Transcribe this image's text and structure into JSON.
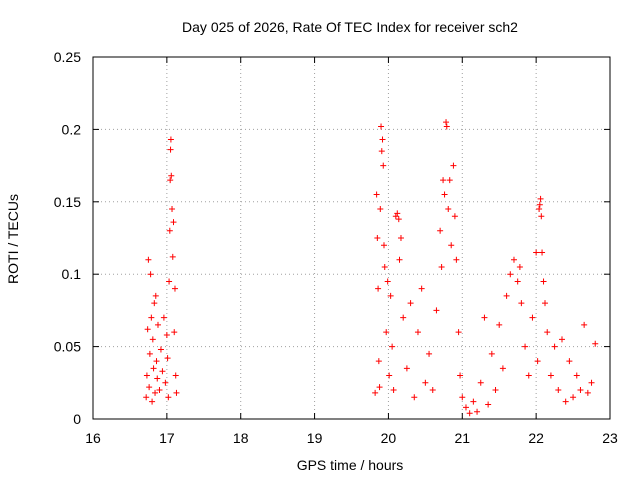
{
  "chart_data": {
    "type": "scatter",
    "title": "Day 025 of 2026, Rate Of TEC Index for receiver sch2",
    "xlabel": "GPS time / hours",
    "ylabel": "ROTI / TECUs",
    "xlim": [
      16,
      23
    ],
    "ylim": [
      0,
      0.25
    ],
    "x_ticks": [
      "16",
      "17",
      "18",
      "19",
      "20",
      "21",
      "22",
      "23"
    ],
    "y_ticks": [
      "0",
      "0.05",
      "0.1",
      "0.15",
      "0.2",
      "0.25"
    ],
    "grid": true,
    "marker": "+",
    "series": [
      {
        "color": "#ff0000",
        "points": [
          [
            16.72,
            0.015
          ],
          [
            16.73,
            0.03
          ],
          [
            16.74,
            0.062
          ],
          [
            16.75,
            0.11
          ],
          [
            16.76,
            0.022
          ],
          [
            16.77,
            0.045
          ],
          [
            16.78,
            0.1
          ],
          [
            16.79,
            0.07
          ],
          [
            16.8,
            0.012
          ],
          [
            16.81,
            0.055
          ],
          [
            16.82,
            0.035
          ],
          [
            16.83,
            0.08
          ],
          [
            16.84,
            0.018
          ],
          [
            16.85,
            0.085
          ],
          [
            16.86,
            0.04
          ],
          [
            16.87,
            0.028
          ],
          [
            16.88,
            0.065
          ],
          [
            16.9,
            0.02
          ],
          [
            16.92,
            0.048
          ],
          [
            16.94,
            0.033
          ],
          [
            16.96,
            0.07
          ],
          [
            16.98,
            0.025
          ],
          [
            17.0,
            0.058
          ],
          [
            17.01,
            0.042
          ],
          [
            17.02,
            0.015
          ],
          [
            17.03,
            0.095
          ],
          [
            17.04,
            0.13
          ],
          [
            17.045,
            0.165
          ],
          [
            17.05,
            0.186
          ],
          [
            17.055,
            0.193
          ],
          [
            17.06,
            0.168
          ],
          [
            17.07,
            0.145
          ],
          [
            17.08,
            0.112
          ],
          [
            17.09,
            0.136
          ],
          [
            17.1,
            0.06
          ],
          [
            17.11,
            0.09
          ],
          [
            17.12,
            0.03
          ],
          [
            17.13,
            0.018
          ],
          [
            19.82,
            0.018
          ],
          [
            19.84,
            0.155
          ],
          [
            19.85,
            0.125
          ],
          [
            19.86,
            0.09
          ],
          [
            19.87,
            0.04
          ],
          [
            19.88,
            0.022
          ],
          [
            19.89,
            0.145
          ],
          [
            19.9,
            0.202
          ],
          [
            19.91,
            0.185
          ],
          [
            19.92,
            0.193
          ],
          [
            19.93,
            0.175
          ],
          [
            19.94,
            0.12
          ],
          [
            19.95,
            0.105
          ],
          [
            19.97,
            0.06
          ],
          [
            19.99,
            0.095
          ],
          [
            20.01,
            0.03
          ],
          [
            20.03,
            0.085
          ],
          [
            20.05,
            0.05
          ],
          [
            20.07,
            0.02
          ],
          [
            20.1,
            0.14
          ],
          [
            20.12,
            0.142
          ],
          [
            20.14,
            0.138
          ],
          [
            20.15,
            0.11
          ],
          [
            20.17,
            0.125
          ],
          [
            20.2,
            0.07
          ],
          [
            20.25,
            0.035
          ],
          [
            20.3,
            0.08
          ],
          [
            20.35,
            0.015
          ],
          [
            20.4,
            0.06
          ],
          [
            20.45,
            0.09
          ],
          [
            20.5,
            0.025
          ],
          [
            20.55,
            0.045
          ],
          [
            20.6,
            0.02
          ],
          [
            20.65,
            0.075
          ],
          [
            20.7,
            0.13
          ],
          [
            20.72,
            0.105
          ],
          [
            20.74,
            0.165
          ],
          [
            20.76,
            0.155
          ],
          [
            20.78,
            0.205
          ],
          [
            20.79,
            0.202
          ],
          [
            20.81,
            0.145
          ],
          [
            20.83,
            0.165
          ],
          [
            20.85,
            0.12
          ],
          [
            20.88,
            0.175
          ],
          [
            20.9,
            0.14
          ],
          [
            20.92,
            0.11
          ],
          [
            20.95,
            0.06
          ],
          [
            20.97,
            0.03
          ],
          [
            21.0,
            0.015
          ],
          [
            21.05,
            0.008
          ],
          [
            21.1,
            0.004
          ],
          [
            21.15,
            0.012
          ],
          [
            21.2,
            0.005
          ],
          [
            21.25,
            0.025
          ],
          [
            21.3,
            0.07
          ],
          [
            21.35,
            0.01
          ],
          [
            21.4,
            0.045
          ],
          [
            21.45,
            0.02
          ],
          [
            21.5,
            0.065
          ],
          [
            21.55,
            0.035
          ],
          [
            21.6,
            0.085
          ],
          [
            21.65,
            0.1
          ],
          [
            21.7,
            0.11
          ],
          [
            21.75,
            0.095
          ],
          [
            21.78,
            0.105
          ],
          [
            21.8,
            0.08
          ],
          [
            21.85,
            0.05
          ],
          [
            21.9,
            0.03
          ],
          [
            21.95,
            0.07
          ],
          [
            22.0,
            0.115
          ],
          [
            22.02,
            0.04
          ],
          [
            22.04,
            0.145
          ],
          [
            22.05,
            0.148
          ],
          [
            22.06,
            0.152
          ],
          [
            22.07,
            0.14
          ],
          [
            22.08,
            0.115
          ],
          [
            22.1,
            0.095
          ],
          [
            22.12,
            0.08
          ],
          [
            22.15,
            0.06
          ],
          [
            22.2,
            0.03
          ],
          [
            22.25,
            0.05
          ],
          [
            22.3,
            0.02
          ],
          [
            22.35,
            0.055
          ],
          [
            22.4,
            0.012
          ],
          [
            22.45,
            0.04
          ],
          [
            22.5,
            0.015
          ],
          [
            22.55,
            0.03
          ],
          [
            22.6,
            0.02
          ],
          [
            22.65,
            0.065
          ],
          [
            22.7,
            0.018
          ],
          [
            22.75,
            0.025
          ],
          [
            22.8,
            0.052
          ]
        ]
      }
    ]
  }
}
